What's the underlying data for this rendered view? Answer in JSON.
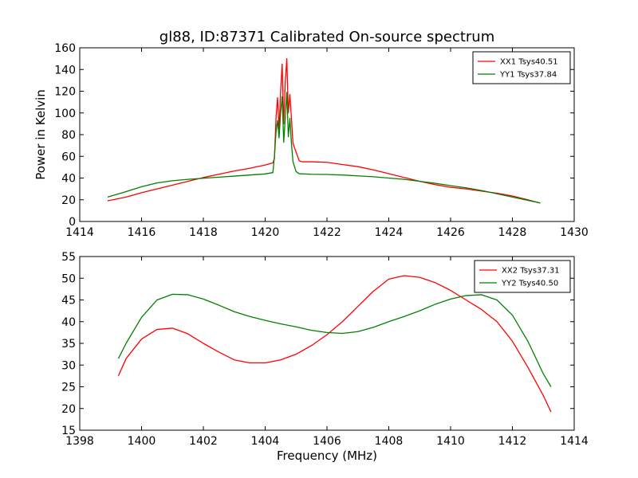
{
  "chart_data": [
    {
      "type": "line",
      "title": "gl88, ID:87371 Calibrated On-source spectrum",
      "xlabel": "",
      "ylabel": "Power in Kelvin",
      "xlim": [
        1414,
        1430
      ],
      "ylim": [
        0,
        160
      ],
      "xticks": [
        1414,
        1416,
        1418,
        1420,
        1422,
        1424,
        1426,
        1428,
        1430
      ],
      "yticks": [
        0,
        20,
        40,
        60,
        80,
        100,
        120,
        140,
        160
      ],
      "legend_position": "top-right",
      "series": [
        {
          "name": "XX1 Tsys40.51",
          "color": "#ff0000",
          "points": [
            [
              1414.9,
              19
            ],
            [
              1415.5,
              22.5
            ],
            [
              1416.0,
              26.5
            ],
            [
              1416.5,
              30
            ],
            [
              1417.0,
              33.5
            ],
            [
              1417.5,
              37
            ],
            [
              1418.0,
              40.5
            ],
            [
              1418.5,
              43.5
            ],
            [
              1419.0,
              46.5
            ],
            [
              1419.5,
              49
            ],
            [
              1420.0,
              52
            ],
            [
              1420.25,
              54
            ],
            [
              1420.3,
              58
            ],
            [
              1420.35,
              95
            ],
            [
              1420.4,
              114
            ],
            [
              1420.45,
              85
            ],
            [
              1420.5,
              120
            ],
            [
              1420.55,
              145
            ],
            [
              1420.6,
              90
            ],
            [
              1420.65,
              128
            ],
            [
              1420.7,
              150
            ],
            [
              1420.75,
              100
            ],
            [
              1420.8,
              117
            ],
            [
              1420.85,
              95
            ],
            [
              1420.9,
              72
            ],
            [
              1421.0,
              64
            ],
            [
              1421.1,
              56
            ],
            [
              1421.2,
              55
            ],
            [
              1421.5,
              55
            ],
            [
              1422.0,
              54.5
            ],
            [
              1422.5,
              52.5
            ],
            [
              1423.0,
              50.5
            ],
            [
              1423.5,
              47.5
            ],
            [
              1424.0,
              44
            ],
            [
              1424.5,
              40.5
            ],
            [
              1425.0,
              37
            ],
            [
              1425.5,
              34
            ],
            [
              1426.0,
              31.5
            ],
            [
              1426.5,
              30
            ],
            [
              1427.0,
              28
            ],
            [
              1427.5,
              26
            ],
            [
              1428.0,
              23.5
            ],
            [
              1428.5,
              20
            ],
            [
              1428.9,
              17
            ]
          ]
        },
        {
          "name": "YY1 Tsys37.84",
          "color": "#008000",
          "points": [
            [
              1414.9,
              22.5
            ],
            [
              1415.5,
              27.5
            ],
            [
              1416.0,
              32
            ],
            [
              1416.5,
              35.5
            ],
            [
              1417.0,
              37.5
            ],
            [
              1417.5,
              38.8
            ],
            [
              1418.0,
              39.8
            ],
            [
              1418.5,
              40.8
            ],
            [
              1419.0,
              41.8
            ],
            [
              1419.5,
              42.8
            ],
            [
              1420.0,
              43.8
            ],
            [
              1420.25,
              45
            ],
            [
              1420.3,
              60
            ],
            [
              1420.35,
              82
            ],
            [
              1420.4,
              93
            ],
            [
              1420.45,
              77
            ],
            [
              1420.5,
              100
            ],
            [
              1420.55,
              115
            ],
            [
              1420.6,
              73
            ],
            [
              1420.65,
              95
            ],
            [
              1420.7,
              119
            ],
            [
              1420.75,
              78
            ],
            [
              1420.8,
              95
            ],
            [
              1420.85,
              72
            ],
            [
              1420.9,
              55
            ],
            [
              1421.0,
              46
            ],
            [
              1421.1,
              44
            ],
            [
              1421.5,
              43.5
            ],
            [
              1422.0,
              43.3
            ],
            [
              1422.5,
              42.8
            ],
            [
              1423.0,
              42
            ],
            [
              1423.5,
              41.2
            ],
            [
              1424.0,
              40
            ],
            [
              1424.5,
              38.8
            ],
            [
              1425.0,
              37
            ],
            [
              1425.5,
              35.2
            ],
            [
              1426.0,
              33
            ],
            [
              1426.5,
              31
            ],
            [
              1427.0,
              28.5
            ],
            [
              1427.5,
              25.5
            ],
            [
              1428.0,
              22.5
            ],
            [
              1428.5,
              19.5
            ],
            [
              1428.9,
              17
            ]
          ]
        }
      ]
    },
    {
      "type": "line",
      "title": "",
      "xlabel": "Frequency (MHz)",
      "ylabel": "",
      "xlim": [
        1398,
        1414
      ],
      "ylim": [
        15,
        55
      ],
      "xticks": [
        1398,
        1400,
        1402,
        1404,
        1406,
        1408,
        1410,
        1412,
        1414
      ],
      "yticks": [
        15,
        20,
        25,
        30,
        35,
        40,
        45,
        50,
        55
      ],
      "legend_position": "top-right",
      "series": [
        {
          "name": "XX2 Tsys37.31",
          "color": "#ff0000",
          "points": [
            [
              1399.25,
              27.5
            ],
            [
              1399.5,
              31.5
            ],
            [
              1400.0,
              36.0
            ],
            [
              1400.5,
              38.2
            ],
            [
              1401.0,
              38.5
            ],
            [
              1401.5,
              37.2
            ],
            [
              1402.0,
              35.0
            ],
            [
              1402.5,
              33.0
            ],
            [
              1403.0,
              31.2
            ],
            [
              1403.5,
              30.5
            ],
            [
              1404.0,
              30.5
            ],
            [
              1404.5,
              31.2
            ],
            [
              1405.0,
              32.5
            ],
            [
              1405.5,
              34.5
            ],
            [
              1406.0,
              37.0
            ],
            [
              1406.5,
              40.0
            ],
            [
              1407.0,
              43.5
            ],
            [
              1407.5,
              47.0
            ],
            [
              1408.0,
              49.8
            ],
            [
              1408.5,
              50.6
            ],
            [
              1409.0,
              50.2
            ],
            [
              1409.5,
              49.0
            ],
            [
              1410.0,
              47.2
            ],
            [
              1410.5,
              45.0
            ],
            [
              1411.0,
              42.8
            ],
            [
              1411.5,
              40.0
            ],
            [
              1412.0,
              35.5
            ],
            [
              1412.5,
              29.5
            ],
            [
              1413.0,
              23.0
            ],
            [
              1413.25,
              19.2
            ]
          ]
        },
        {
          "name": "YY2 Tsys40.50",
          "color": "#008000",
          "points": [
            [
              1399.25,
              31.5
            ],
            [
              1399.5,
              35.0
            ],
            [
              1400.0,
              41.0
            ],
            [
              1400.5,
              45.0
            ],
            [
              1401.0,
              46.3
            ],
            [
              1401.5,
              46.2
            ],
            [
              1402.0,
              45.2
            ],
            [
              1402.5,
              43.8
            ],
            [
              1403.0,
              42.3
            ],
            [
              1403.5,
              41.2
            ],
            [
              1404.0,
              40.3
            ],
            [
              1404.5,
              39.5
            ],
            [
              1405.0,
              38.8
            ],
            [
              1405.5,
              38.0
            ],
            [
              1406.0,
              37.5
            ],
            [
              1406.5,
              37.3
            ],
            [
              1407.0,
              37.7
            ],
            [
              1407.5,
              38.7
            ],
            [
              1408.0,
              40.0
            ],
            [
              1408.5,
              41.2
            ],
            [
              1409.0,
              42.5
            ],
            [
              1409.5,
              44.0
            ],
            [
              1410.0,
              45.2
            ],
            [
              1410.5,
              46.0
            ],
            [
              1411.0,
              46.2
            ],
            [
              1411.5,
              45.0
            ],
            [
              1412.0,
              41.5
            ],
            [
              1412.5,
              35.5
            ],
            [
              1413.0,
              28.0
            ],
            [
              1413.25,
              25.0
            ]
          ]
        }
      ]
    }
  ]
}
